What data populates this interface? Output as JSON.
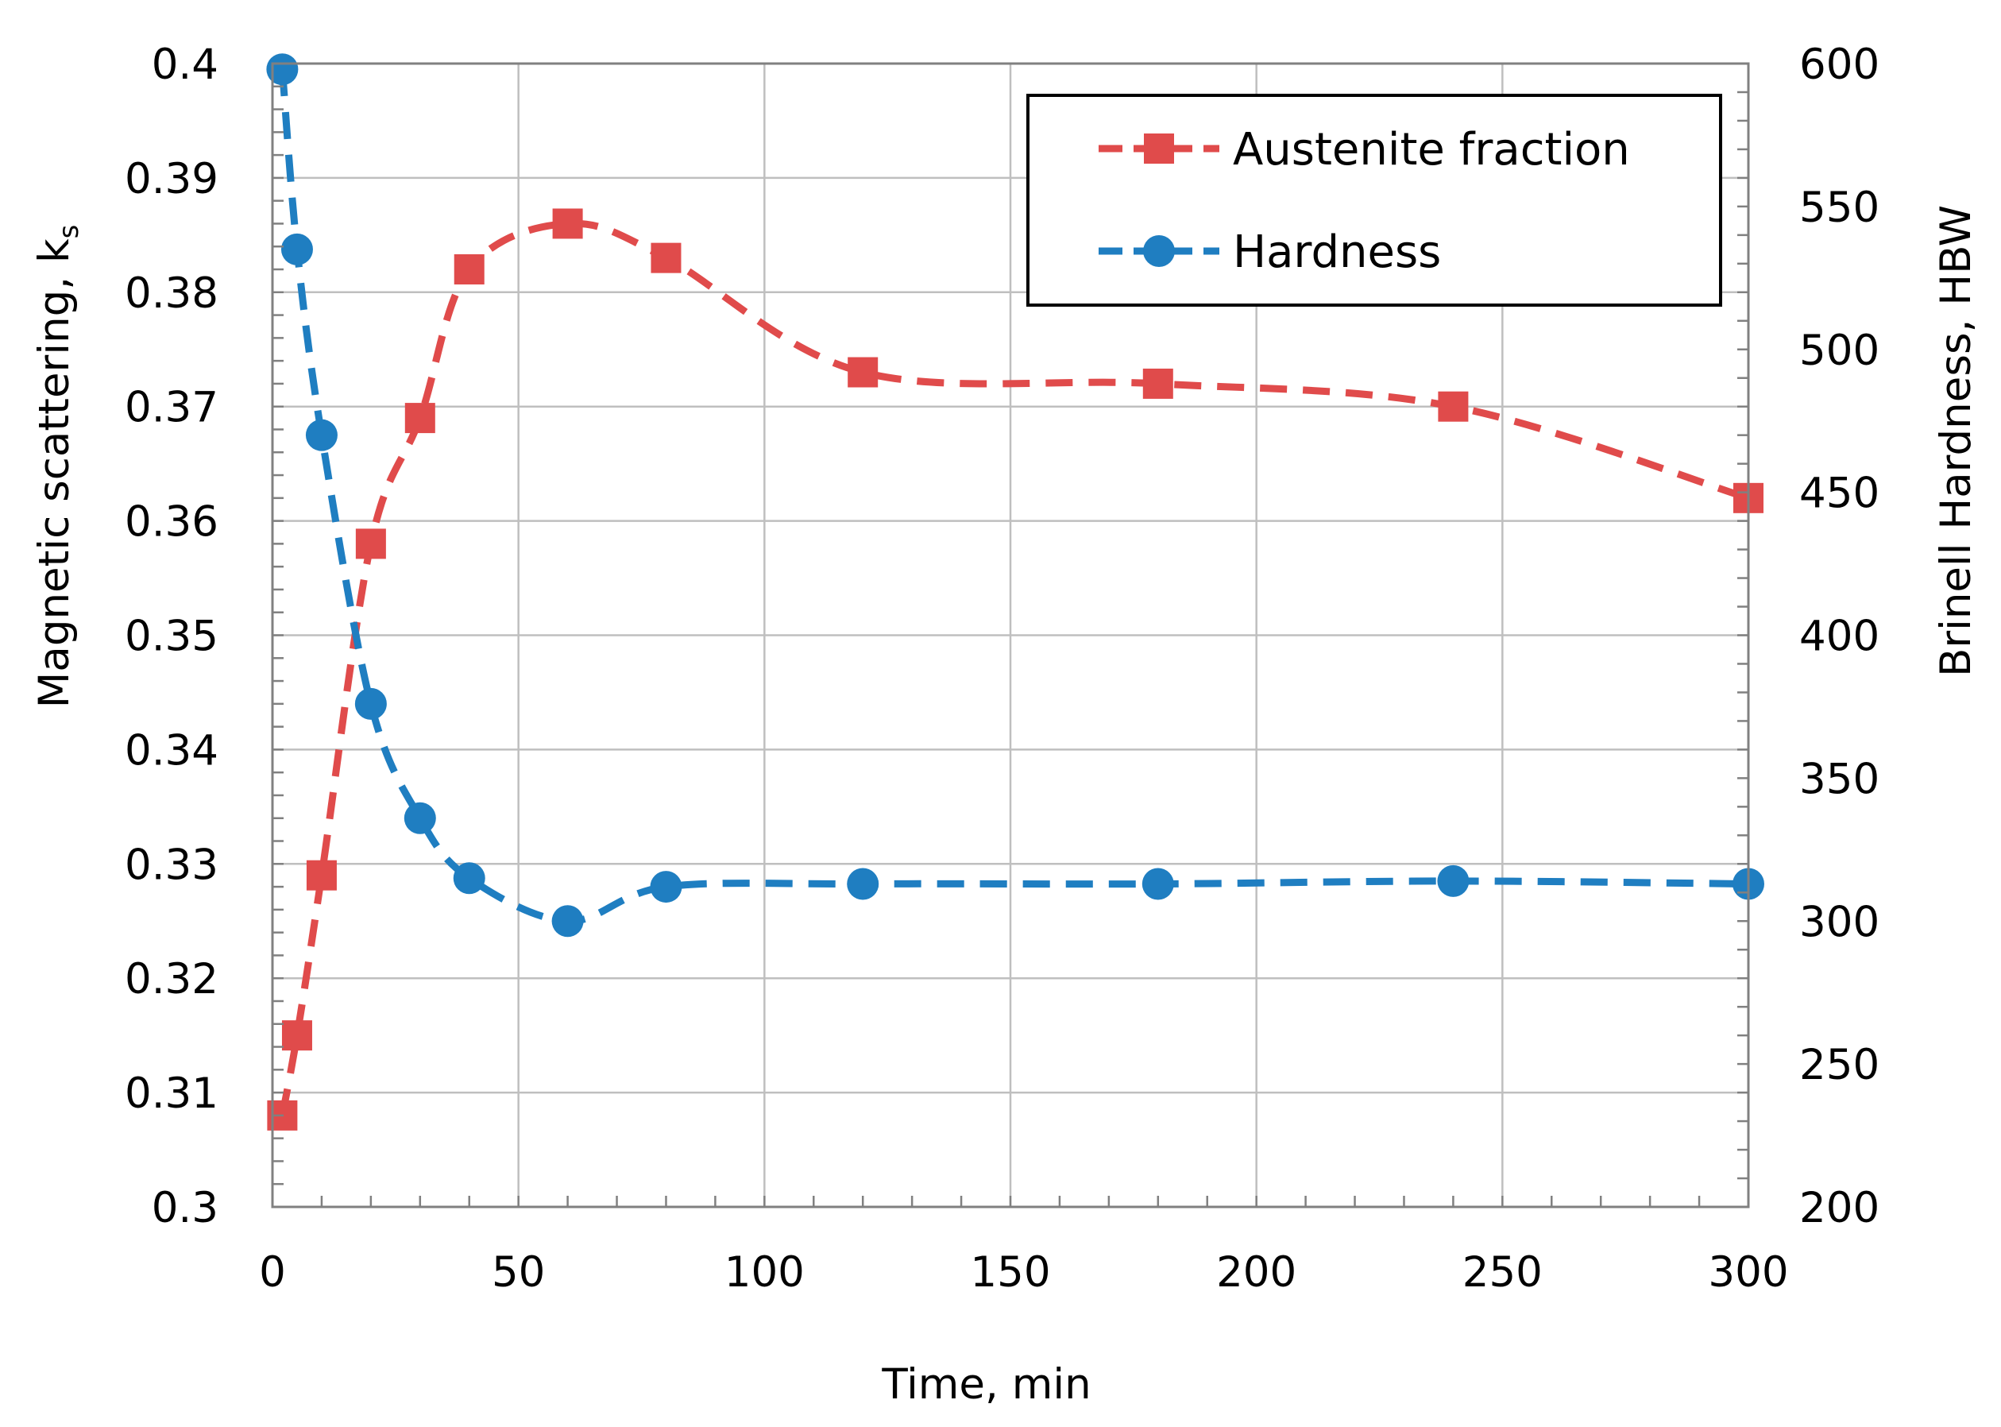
{
  "chart_data": {
    "type": "line",
    "title": "",
    "xlabel": "Time, min",
    "ylabel": "Magnetic scattering, k",
    "ylabel_subscript": "s",
    "y2label": "Brinell Hardness, HBW",
    "xlim": [
      0,
      300
    ],
    "ylim": [
      0.3,
      0.4
    ],
    "y2lim": [
      200,
      600
    ],
    "grid": true,
    "legend_position": "top-right",
    "x_ticks": [
      "0",
      "50",
      "100",
      "150",
      "200",
      "250",
      "300"
    ],
    "y_ticks": [
      "0.3",
      "0.31",
      "0.32",
      "0.33",
      "0.34",
      "0.35",
      "0.36",
      "0.37",
      "0.38",
      "0.39",
      "0.4"
    ],
    "y2_ticks": [
      "200",
      "250",
      "300",
      "350",
      "400",
      "450",
      "500",
      "550",
      "600"
    ],
    "series": [
      {
        "name": "Austenite fraction",
        "axis": "left",
        "color": "#E04B4B",
        "marker": "square",
        "line_style": "dashed",
        "x": [
          2,
          5,
          10,
          20,
          30,
          40,
          60,
          80,
          120,
          180,
          240,
          300
        ],
        "values": [
          0.308,
          0.315,
          0.329,
          0.358,
          0.369,
          0.382,
          0.386,
          0.383,
          0.373,
          0.372,
          0.37,
          0.362
        ]
      },
      {
        "name": "Hardness",
        "axis": "right",
        "color": "#1F7EC1",
        "marker": "circle",
        "line_style": "dashed",
        "x": [
          2,
          5,
          10,
          20,
          30,
          40,
          60,
          80,
          120,
          180,
          240,
          300
        ],
        "values": [
          598,
          535,
          470,
          376,
          336,
          315,
          300,
          312,
          313,
          313,
          314,
          313
        ]
      }
    ]
  }
}
